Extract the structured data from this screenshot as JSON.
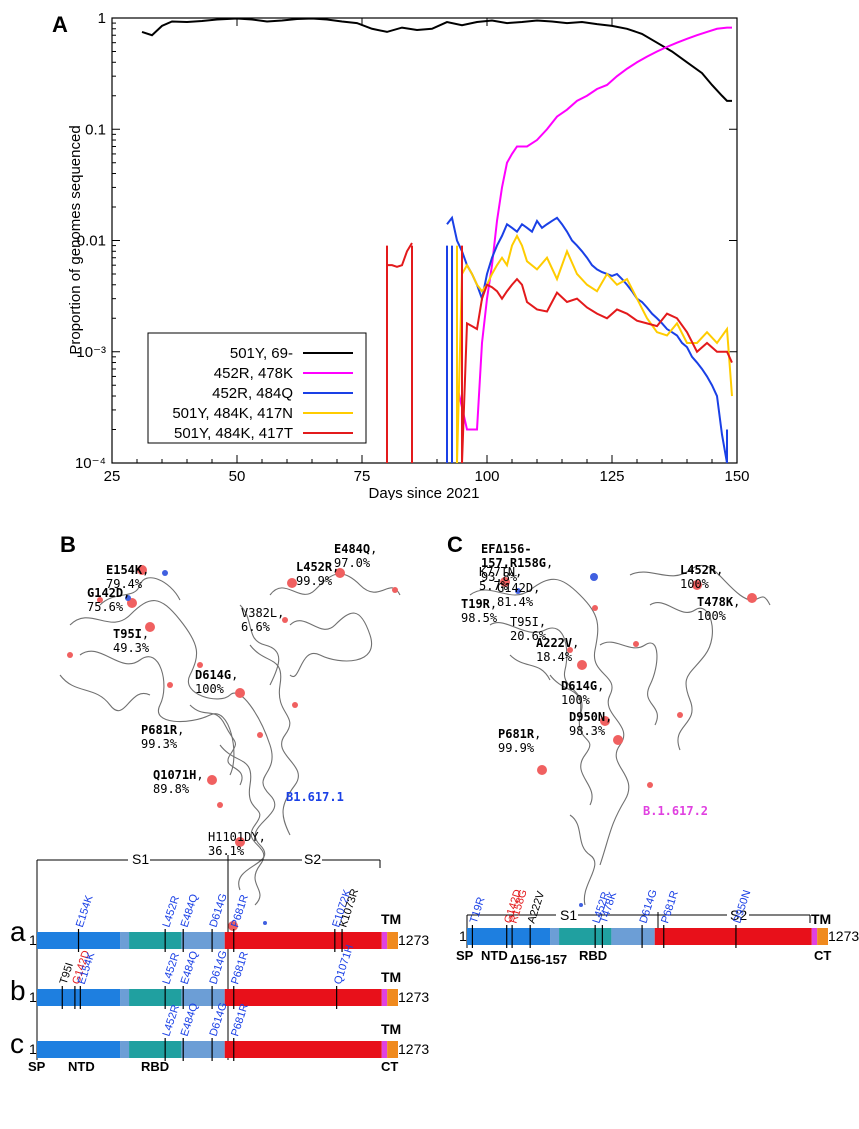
{
  "panels": {
    "A": "A",
    "B": "B",
    "C": "C"
  },
  "chart_data": {
    "type": "line",
    "xlabel": "Days since 2021",
    "ylabel": "Proportion of genomes sequenced",
    "xlim": [
      25,
      150
    ],
    "ylim": [
      0.0001,
      1
    ],
    "yscale": "log",
    "xticks": [
      25,
      50,
      75,
      100,
      125,
      150
    ],
    "ytick_labels": [
      "10⁻⁴",
      "10⁻³",
      "0.01",
      "0.1",
      "1"
    ],
    "legend_position": "lower-left",
    "series": [
      {
        "name": "501Y, 69-",
        "color": "#000000",
        "x": [
          31,
          33,
          35,
          37,
          40,
          43,
          46,
          48,
          50,
          53,
          56,
          59,
          62,
          65,
          68,
          71,
          74,
          77,
          80,
          83,
          86,
          89,
          92,
          95,
          98,
          101,
          104,
          107,
          110,
          113,
          116,
          119,
          122,
          125,
          128,
          131,
          134,
          137,
          140,
          143,
          145,
          147,
          148,
          149
        ],
        "y": [
          0.75,
          0.7,
          0.85,
          0.93,
          0.92,
          0.94,
          0.97,
          0.98,
          0.99,
          0.97,
          0.93,
          0.95,
          0.98,
          0.99,
          0.97,
          0.93,
          0.9,
          0.8,
          0.75,
          0.82,
          0.78,
          0.8,
          0.92,
          0.86,
          0.92,
          0.95,
          0.9,
          0.92,
          0.95,
          0.93,
          0.9,
          0.92,
          0.88,
          0.85,
          0.8,
          0.72,
          0.6,
          0.5,
          0.4,
          0.32,
          0.25,
          0.2,
          0.18,
          0.18
        ]
      },
      {
        "name": "452R, 478K",
        "color": "#ff00ff",
        "x": [
          94,
          96,
          98,
          99,
          100,
          101,
          102,
          103,
          104,
          105,
          106,
          108,
          110,
          112,
          114,
          116,
          118,
          120,
          122,
          124,
          126,
          128,
          130,
          132,
          134,
          136,
          138,
          140,
          142,
          144,
          146,
          148,
          149
        ],
        "y": [
          0.0005,
          0.0002,
          0.0002,
          0.0012,
          0.003,
          0.006,
          0.015,
          0.03,
          0.05,
          0.06,
          0.07,
          0.07,
          0.08,
          0.1,
          0.13,
          0.15,
          0.18,
          0.2,
          0.23,
          0.25,
          0.3,
          0.35,
          0.4,
          0.45,
          0.5,
          0.55,
          0.6,
          0.65,
          0.7,
          0.75,
          0.8,
          0.82,
          0.82
        ]
      },
      {
        "name": "452R, 484Q",
        "color": "#1a40e6",
        "x": [
          92,
          93,
          94,
          95,
          96,
          97,
          98,
          99,
          100,
          101,
          102,
          103,
          104,
          105,
          106,
          107,
          108,
          109,
          110,
          111,
          112,
          113,
          114,
          115,
          116,
          117,
          118,
          119,
          120,
          121,
          122,
          123,
          124,
          125,
          126,
          127,
          128,
          129,
          130,
          131,
          132,
          133,
          134,
          135,
          136,
          137,
          138,
          139,
          140,
          141,
          142,
          143,
          144,
          145,
          146,
          147,
          148
        ],
        "y": [
          0.014,
          0.016,
          0.01,
          0.008,
          0.006,
          0.005,
          0.004,
          0.003,
          0.005,
          0.007,
          0.009,
          0.011,
          0.014,
          0.013,
          0.012,
          0.014,
          0.013,
          0.012,
          0.015,
          0.013,
          0.014,
          0.015,
          0.016,
          0.014,
          0.012,
          0.01,
          0.009,
          0.008,
          0.007,
          0.006,
          0.0055,
          0.0052,
          0.005,
          0.0048,
          0.005,
          0.0045,
          0.004,
          0.0035,
          0.003,
          0.0028,
          0.0025,
          0.0022,
          0.002,
          0.0018,
          0.0016,
          0.0015,
          0.0014,
          0.0012,
          0.0011,
          0.0009,
          0.0008,
          0.0007,
          0.0006,
          0.0005,
          0.0004,
          0.00018,
          0.0001
        ]
      },
      {
        "name": "501Y, 484K, 417N",
        "color": "#ffcc00",
        "x": [
          94,
          95,
          96,
          97,
          98,
          99,
          100,
          101,
          102,
          103,
          104,
          105,
          106,
          107,
          108,
          110,
          112,
          114,
          116,
          118,
          120,
          122,
          124,
          126,
          128,
          130,
          132,
          134,
          136,
          138,
          140,
          142,
          144,
          146,
          148,
          149
        ],
        "y": [
          0.0001,
          0.005,
          0.006,
          0.005,
          0.004,
          0.0035,
          0.004,
          0.005,
          0.006,
          0.007,
          0.006,
          0.009,
          0.011,
          0.009,
          0.0065,
          0.0055,
          0.007,
          0.0045,
          0.008,
          0.005,
          0.004,
          0.0035,
          0.005,
          0.004,
          0.0045,
          0.003,
          0.002,
          0.0015,
          0.0014,
          0.0018,
          0.0012,
          0.0012,
          0.0015,
          0.0012,
          0.0016,
          0.0004
        ]
      },
      {
        "name": "501Y, 484K, 417T",
        "color": "#e31a1c",
        "x": [
          80,
          81,
          82,
          83,
          84,
          85,
          95,
          96,
          97,
          98,
          99,
          100,
          101,
          102,
          103,
          104,
          105,
          106,
          107,
          108,
          110,
          112,
          114,
          116,
          118,
          120,
          122,
          124,
          126,
          128,
          130,
          132,
          134,
          136,
          138,
          140,
          142,
          144,
          146,
          148,
          149
        ],
        "y": [
          0.006,
          0.006,
          0.0058,
          0.006,
          0.008,
          0.0095,
          0.0001,
          0.0018,
          0.0017,
          0.0016,
          0.003,
          0.004,
          0.0038,
          0.0035,
          0.003,
          0.0035,
          0.004,
          0.0045,
          0.004,
          0.0028,
          0.0024,
          0.0023,
          0.0034,
          0.0028,
          0.003,
          0.0025,
          0.0022,
          0.002,
          0.0024,
          0.0022,
          0.0019,
          0.0018,
          0.0017,
          0.0022,
          0.002,
          0.0015,
          0.001,
          0.0012,
          0.001,
          0.001,
          0.0008
        ]
      }
    ],
    "drop_lines": [
      {
        "x": 80,
        "color": "#e31a1c"
      },
      {
        "x": 85,
        "color": "#e31a1c"
      },
      {
        "x": 92,
        "color": "#1a40e6"
      },
      {
        "x": 93,
        "color": "#1a40e6"
      },
      {
        "x": 94,
        "color": "#ffcc00"
      },
      {
        "x": 95,
        "color": "#e31a1c"
      },
      {
        "x": 148,
        "color": "#1a40e6"
      }
    ]
  },
  "structure_B": {
    "variant": "B1.617.1",
    "variant_color": "#1a40e6",
    "mutations": [
      {
        "bold": "E154K",
        "pct": ", 79.4%"
      },
      {
        "bold": "G142D",
        "pct": ", 75.6%"
      },
      {
        "bold": "T95I",
        "pct": ", 49.3%"
      },
      {
        "bold": "E484Q",
        "pct": ", 97.0%"
      },
      {
        "bold": "L452R",
        "pct": ", 99.9%"
      },
      {
        "bold": "",
        "pct": "V382L, 6.6%"
      },
      {
        "bold": "D614G",
        "pct": ", 100%"
      },
      {
        "bold": "P681R",
        "pct": ", 99.3%"
      },
      {
        "bold": "Q1071H",
        "pct": ", 89.8%"
      },
      {
        "bold": "",
        "pct": "H1101DY, 36.1%"
      }
    ]
  },
  "structure_C": {
    "variant": "B.1.617.2",
    "variant_color": "#e040e0",
    "mutations": [
      {
        "bold": "EFΔ156-157,R158G",
        "pct": ", 93.8%"
      },
      {
        "bold": "",
        "pct": "K77TN, 5.7%"
      },
      {
        "bold": "",
        "pct": "G142D, 81.4%"
      },
      {
        "bold": "L452R",
        "pct": ", 100%"
      },
      {
        "bold": "T19R",
        "pct": ", 98.5%"
      },
      {
        "bold": "T478K",
        "pct": ", 100%"
      },
      {
        "bold": "",
        "pct": "T95I, 20.6%"
      },
      {
        "bold": "A222V",
        "pct": ", 18.4%"
      },
      {
        "bold": "D614G",
        "pct": ", 100%"
      },
      {
        "bold": "D950N",
        "pct": ", 98.3%"
      },
      {
        "bold": "P681R",
        "pct": ", 99.9%"
      }
    ]
  },
  "domain_maps": {
    "rows_left": [
      "a",
      "b",
      "c"
    ],
    "start": "1",
    "end": "1273",
    "s1": "S1",
    "s2": "S2",
    "tm": "TM",
    "sp": "SP",
    "ntd": "NTD",
    "rbd": "RBD",
    "ct": "CT",
    "delta_label": "Δ156-157",
    "row_a": [
      "E154K",
      "L452R",
      "E484Q",
      "D614G",
      "P681R",
      "E1072K",
      "K1073R"
    ],
    "row_b": [
      "T95I",
      "G142D",
      "E154K",
      "L452R",
      "E484Q",
      "D614G",
      "P681R",
      "Q1071H"
    ],
    "row_c": [
      "L452R",
      "E484Q",
      "D614G",
      "P681R"
    ],
    "row_right": [
      "T19R",
      "G142D",
      "R158G",
      "A222V",
      "L452R",
      "T478K",
      "D614G",
      "P681R",
      "D950N"
    ]
  },
  "colors": {
    "sp_ntd": "#1e7fe0",
    "linker": "#6c9ed6",
    "rbd": "#20a0a0",
    "s2": "#e8101a",
    "tm": "#e040e0",
    "ct": "#f08a1e",
    "mut_blue": "#1a40e6",
    "mut_red": "#e31a1c",
    "atom": "#f06060"
  }
}
